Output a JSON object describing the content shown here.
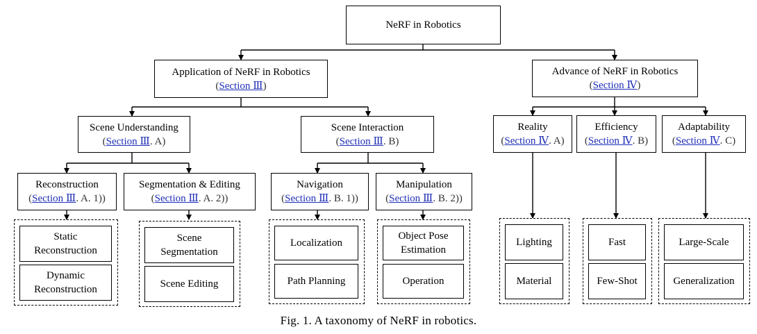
{
  "root": {
    "label": "NeRF in Robotics"
  },
  "application": {
    "label": "Application of NeRF in Robotics",
    "section_prefix": "(",
    "section_link": "Section Ⅲ",
    "section_suffix": ")"
  },
  "advance": {
    "label": "Advance of NeRF in Robotics",
    "section_prefix": "(",
    "section_link": "Section Ⅳ",
    "section_suffix": ")"
  },
  "scene_understanding": {
    "label": "Scene Understanding",
    "section_prefix": "(",
    "section_link": "Section Ⅲ",
    "section_suffix": ". A)"
  },
  "scene_interaction": {
    "label": "Scene Interaction",
    "section_prefix": "(",
    "section_link": "Section Ⅲ",
    "section_suffix": ". B)"
  },
  "reconstruction": {
    "label": "Reconstruction",
    "section_prefix": "(",
    "section_link": "Section Ⅲ",
    "section_suffix": ". A. 1))",
    "leaves": [
      "Static Reconstruction",
      "Dynamic Reconstruction"
    ]
  },
  "segmentation": {
    "label": "Segmentation & Editing",
    "section_prefix": "(",
    "section_link": "Section Ⅲ",
    "section_suffix": ". A. 2))",
    "leaves": [
      "Scene Segmentation",
      "Scene Editing"
    ]
  },
  "navigation": {
    "label": "Navigation",
    "section_prefix": "(",
    "section_link": "Section Ⅲ",
    "section_suffix": ". B. 1))",
    "leaves": [
      "Localization",
      "Path Planning"
    ]
  },
  "manipulation": {
    "label": "Manipulation",
    "section_prefix": "(",
    "section_link": "Section Ⅲ",
    "section_suffix": ". B. 2))",
    "leaves": [
      "Object Pose Estimation",
      "Operation"
    ]
  },
  "reality": {
    "label": "Reality",
    "section_prefix": "(",
    "section_link": "Section Ⅳ",
    "section_suffix": ". A)",
    "leaves": [
      "Lighting",
      "Material"
    ]
  },
  "efficiency": {
    "label": "Efficiency",
    "section_prefix": "(",
    "section_link": "Section Ⅳ",
    "section_suffix": ". B)",
    "leaves": [
      "Fast",
      "Few-Shot"
    ]
  },
  "adaptability": {
    "label": "Adaptability",
    "section_prefix": "(",
    "section_link": "Section Ⅳ",
    "section_suffix": ". C)",
    "leaves": [
      "Large-Scale",
      "Generalization"
    ]
  },
  "caption": "Fig. 1. A taxonomy of NeRF in robotics."
}
